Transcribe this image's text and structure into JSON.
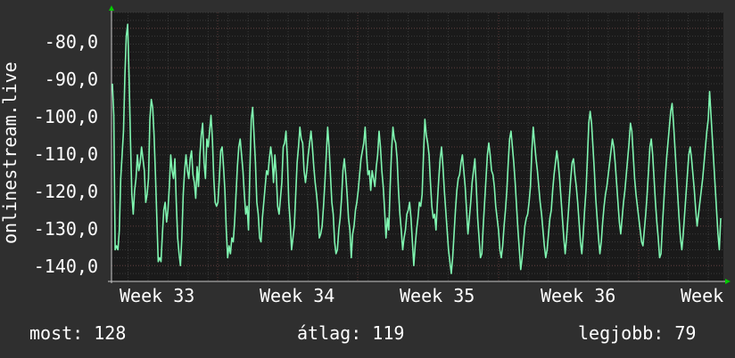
{
  "chart_data": {
    "type": "line",
    "ylabel": "onlinestream.live",
    "ylim": [
      -144,
      -76
    ],
    "yticks": [
      "-80,0",
      "-90,0",
      "-100,0",
      "-110,0",
      "-120,0",
      "-130,0",
      "-140,0"
    ],
    "ytick_values": [
      -80,
      -90,
      -100,
      -110,
      -120,
      -130,
      -140
    ],
    "xticks": [
      "Week 33",
      "Week 34",
      "Week 35",
      "Week 36",
      "Week"
    ],
    "grid": true,
    "line_color": "#7ff5b0",
    "series": [
      {
        "values": [
          -94,
          -102,
          -136,
          -135,
          -136,
          -131,
          -118,
          -112,
          -106,
          -92,
          -82,
          -79,
          -92,
          -108,
          -122,
          -127,
          -121,
          -118,
          -112,
          -116,
          -114,
          -110,
          -113,
          -116,
          -124,
          -122,
          -118,
          -103,
          -98,
          -100,
          -107,
          -117,
          -128,
          -139,
          -138,
          -139,
          -132,
          -126,
          -124,
          -129,
          -126,
          -120,
          -112,
          -116,
          -118,
          -113,
          -124,
          -133,
          -137,
          -140,
          -133,
          -122,
          -116,
          -112,
          -116,
          -118,
          -113,
          -111,
          -117,
          -119,
          -123,
          -115,
          -120,
          -112,
          -107,
          -104,
          -114,
          -118,
          -108,
          -110,
          -106,
          -102,
          -108,
          -118,
          -124,
          -125,
          -124,
          -118,
          -111,
          -110,
          -115,
          -121,
          -131,
          -138,
          -135,
          -137,
          -133,
          -134,
          -129,
          -122,
          -115,
          -110,
          -108,
          -112,
          -116,
          -122,
          -127,
          -125,
          -131,
          -116,
          -103,
          -100,
          -107,
          -114,
          -124,
          -127,
          -133,
          -134,
          -128,
          -124,
          -120,
          -116,
          -117,
          -113,
          -110,
          -113,
          -119,
          -112,
          -117,
          -125,
          -127,
          -123,
          -119,
          -110,
          -109,
          -106,
          -113,
          -124,
          -129,
          -136,
          -133,
          -130,
          -122,
          -114,
          -110,
          -105,
          -108,
          -109,
          -116,
          -119,
          -116,
          -112,
          -109,
          -106,
          -110,
          -115,
          -119,
          -122,
          -126,
          -133,
          -132,
          -130,
          -125,
          -119,
          -112,
          -105,
          -110,
          -117,
          -124,
          -127,
          -134,
          -137,
          -136,
          -131,
          -128,
          -123,
          -116,
          -113,
          -117,
          -122,
          -128,
          -131,
          -138,
          -132,
          -130,
          -126,
          -124,
          -121,
          -117,
          -113,
          -111,
          -109,
          -105,
          -112,
          -117,
          -116,
          -121,
          -116,
          -118,
          -120,
          -115,
          -112,
          -106,
          -110,
          -116,
          -120,
          -126,
          -133,
          -128,
          -131,
          -120,
          -111,
          -105,
          -108,
          -109,
          -113,
          -121,
          -127,
          -131,
          -136,
          -133,
          -131,
          -127,
          -126,
          -124,
          -128,
          -134,
          -140,
          -135,
          -131,
          -128,
          -124,
          -125,
          -122,
          -112,
          -103,
          -107,
          -109,
          -112,
          -119,
          -125,
          -128,
          -127,
          -131,
          -124,
          -118,
          -113,
          -110,
          -115,
          -121,
          -126,
          -131,
          -136,
          -139,
          -142,
          -138,
          -132,
          -126,
          -121,
          -118,
          -117,
          -114,
          -112,
          -116,
          -120,
          -126,
          -132,
          -128,
          -124,
          -119,
          -116,
          -113,
          -120,
          -128,
          -133,
          -138,
          -137,
          -130,
          -124,
          -118,
          -112,
          -109,
          -112,
          -116,
          -117,
          -120,
          -125,
          -128,
          -131,
          -136,
          -138,
          -135,
          -130,
          -126,
          -121,
          -114,
          -108,
          -106,
          -110,
          -114,
          -119,
          -125,
          -131,
          -136,
          -141,
          -138,
          -134,
          -130,
          -128,
          -127,
          -124,
          -120,
          -111,
          -105,
          -109,
          -113,
          -116,
          -120,
          -124,
          -127,
          -131,
          -135,
          -138,
          -136,
          -132,
          -128,
          -126,
          -121,
          -117,
          -114,
          -111,
          -114,
          -118,
          -123,
          -128,
          -133,
          -137,
          -133,
          -128,
          -123,
          -118,
          -114,
          -113,
          -117,
          -120,
          -124,
          -129,
          -134,
          -137,
          -132,
          -126,
          -121,
          -113,
          -104,
          -101,
          -104,
          -110,
          -116,
          -123,
          -128,
          -133,
          -137,
          -134,
          -129,
          -125,
          -122,
          -120,
          -117,
          -114,
          -111,
          -108,
          -110,
          -114,
          -119,
          -124,
          -129,
          -132,
          -128,
          -124,
          -121,
          -117,
          -113,
          -109,
          -104,
          -106,
          -112,
          -118,
          -122,
          -125,
          -128,
          -131,
          -134,
          -135,
          -131,
          -127,
          -122,
          -116,
          -110,
          -108,
          -112,
          -118,
          -124,
          -129,
          -133,
          -138,
          -137,
          -130,
          -124,
          -118,
          -113,
          -109,
          -105,
          -101,
          -99,
          -104,
          -110,
          -116,
          -122,
          -128,
          -133,
          -136,
          -132,
          -127,
          -122,
          -117,
          -112,
          -110,
          -113,
          -117,
          -121,
          -126,
          -130,
          -127,
          -124,
          -121,
          -118,
          -114,
          -110,
          -106,
          -103,
          -96,
          -102,
          -108,
          -114,
          -120,
          -126,
          -132,
          -136,
          -128
        ],
        "color": "#7ff5b0"
      }
    ]
  },
  "legend": {
    "current": "most: 128",
    "average": "átlag: 119",
    "best": "legjobb: 79"
  },
  "colors": {
    "background": "#2f2f2f",
    "plot": "#1a1a1a",
    "grid": "#444444",
    "line": "#7ff5b0",
    "arrow": "#00cc00"
  }
}
